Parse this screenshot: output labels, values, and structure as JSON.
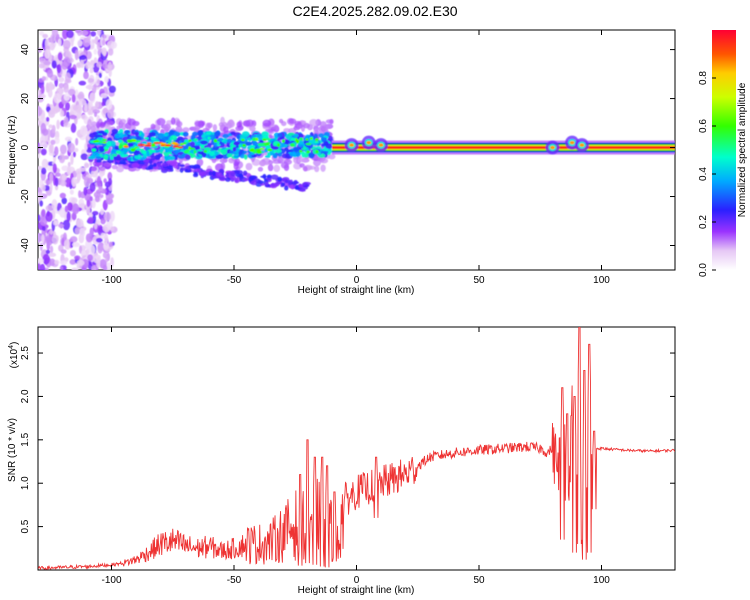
{
  "title": "C2E4.2025.282.09.02.E30",
  "chart_data": [
    {
      "type": "heatmap",
      "xlabel": "Height of straight line (km)",
      "ylabel": "Frequency (Hz)",
      "xlim": [
        -130,
        130
      ],
      "ylim": [
        -50,
        48
      ],
      "xticks": [
        -100,
        -50,
        0,
        50,
        100
      ],
      "yticks": [
        -40,
        -20,
        0,
        20,
        40
      ],
      "colorbar": {
        "label": "Normalized spectral amplitude",
        "range": [
          0,
          1
        ],
        "ticks": [
          "0.0",
          "0.2",
          "0.4",
          "0.6",
          "0.8"
        ]
      },
      "features": [
        {
          "name": "noise-cloud",
          "x_range": [
            -130,
            -105
          ],
          "y_range": [
            -50,
            48
          ]
        },
        {
          "name": "main-blob",
          "x_range": [
            -108,
            -10
          ],
          "y_center": 1,
          "y_half_width": 6
        },
        {
          "name": "lower-branch",
          "x_range": [
            -110,
            -20
          ],
          "y_at_start": -3,
          "y_at_end": -16
        },
        {
          "name": "steady-band",
          "x_range": [
            -10,
            130
          ],
          "y_center": 0,
          "y_half_width": 1.5
        },
        {
          "name": "bright-spots",
          "x": [
            -2,
            5,
            10,
            80,
            88,
            92
          ],
          "y": [
            1,
            2,
            1,
            0,
            2,
            1
          ]
        }
      ]
    },
    {
      "type": "line",
      "xlabel": "Height of straight line (km)",
      "ylabel": "SNR (10 * v/v)",
      "y_multiplier": "(x10",
      "y_multiplier_exp": "4",
      "y_multiplier_close": ")",
      "xlim": [
        -130,
        130
      ],
      "ylim": [
        0,
        2.8
      ],
      "xticks": [
        -100,
        -50,
        0,
        50,
        100
      ],
      "yticks": [
        "0.5",
        "1.0",
        "1.5",
        "2.0",
        "2.5"
      ],
      "series": [
        {
          "name": "SNR",
          "color": "#ee3333",
          "x": [
            -130,
            -110,
            -100,
            -95,
            -90,
            -85,
            -80,
            -75,
            -70,
            -65,
            -60,
            -55,
            -50,
            -45,
            -40,
            -35,
            -30,
            -25,
            -20,
            -15,
            -10,
            -7,
            -5,
            0,
            5,
            10,
            15,
            20,
            25,
            30,
            40,
            50,
            60,
            70,
            75,
            78,
            80,
            82,
            85,
            87,
            88,
            89,
            90,
            91,
            92,
            93,
            94,
            95,
            96,
            97,
            98,
            100,
            110,
            120,
            130
          ],
          "y": [
            0.02,
            0.04,
            0.06,
            0.08,
            0.12,
            0.2,
            0.3,
            0.33,
            0.28,
            0.25,
            0.27,
            0.22,
            0.25,
            0.3,
            0.3,
            0.32,
            0.42,
            0.52,
            0.55,
            0.6,
            0.45,
            0.4,
            0.8,
            0.9,
            0.95,
            1.0,
            1.05,
            1.1,
            1.2,
            1.3,
            1.35,
            1.38,
            1.4,
            1.42,
            1.4,
            1.35,
            1.4,
            1.2,
            1.5,
            1.1,
            2.0,
            1.6,
            1.3,
            2.8,
            0.5,
            1.6,
            0.9,
            2.6,
            1.4,
            1.3,
            1.4,
            1.4,
            1.38,
            1.37,
            1.38
          ],
          "spikes": [
            {
              "x": -23,
              "peak": 1.1,
              "trough": 0.05
            },
            {
              "x": -20,
              "peak": 1.5,
              "trough": 0.08
            },
            {
              "x": -17,
              "peak": 1.3,
              "trough": 0.06
            },
            {
              "x": -14,
              "peak": 1.3,
              "trough": 0.04
            },
            {
              "x": -12,
              "peak": 1.2,
              "trough": 0.03
            },
            {
              "x": -9,
              "peak": 0.9,
              "trough": 0.1
            },
            {
              "x": 8,
              "peak": 1.3,
              "trough": 0.6
            },
            {
              "x": 84,
              "peak": 2.1,
              "trough": 0.35
            },
            {
              "x": 86,
              "peak": 1.8,
              "trough": 0.8
            },
            {
              "x": 89,
              "peak": 2.0,
              "trough": 0.2
            },
            {
              "x": 91,
              "peak": 2.8,
              "trough": 0.3
            },
            {
              "x": 93,
              "peak": 2.3,
              "trough": 0.12
            },
            {
              "x": 95,
              "peak": 2.6,
              "trough": 0.2
            },
            {
              "x": 97,
              "peak": 1.6,
              "trough": 0.7
            }
          ]
        }
      ]
    }
  ]
}
